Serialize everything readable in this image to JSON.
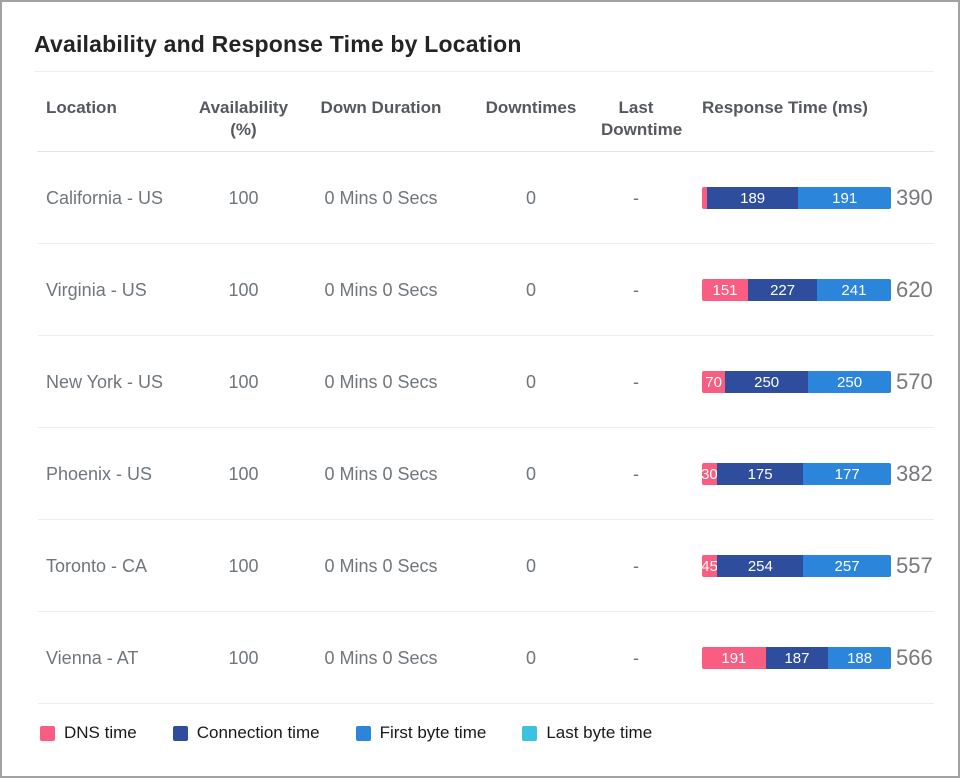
{
  "title": "Availability and Response Time by Location",
  "colors": {
    "dns": "#f95d81",
    "connection": "#2e4d9d",
    "first_byte": "#2b86db",
    "last_byte": "#3ac2e0"
  },
  "table": {
    "headers": {
      "location": "Location",
      "availability": "Availability\n(%)",
      "down_duration": "Down Duration",
      "downtimes": "Downtimes",
      "last_downtime": "Last\nDowntime",
      "response_time": "Response Time (ms)"
    },
    "rows": [
      {
        "location": "California - US",
        "availability": "100",
        "down_duration": "0 Mins 0 Secs",
        "downtimes": "0",
        "last_downtime": "-",
        "total": 390,
        "segments": [
          {
            "key": "dns",
            "value": 10,
            "label": ""
          },
          {
            "key": "connection",
            "value": 189,
            "label": "189"
          },
          {
            "key": "first_byte",
            "value": 191,
            "label": "191"
          }
        ]
      },
      {
        "location": "Virginia - US",
        "availability": "100",
        "down_duration": "0 Mins 0 Secs",
        "downtimes": "0",
        "last_downtime": "-",
        "total": 620,
        "segments": [
          {
            "key": "dns",
            "value": 151,
            "label": "151"
          },
          {
            "key": "connection",
            "value": 227,
            "label": "227"
          },
          {
            "key": "first_byte",
            "value": 241,
            "label": "241"
          }
        ]
      },
      {
        "location": "New York - US",
        "availability": "100",
        "down_duration": "0 Mins 0 Secs",
        "downtimes": "0",
        "last_downtime": "-",
        "total": 570,
        "segments": [
          {
            "key": "dns",
            "value": 70,
            "label": "70"
          },
          {
            "key": "connection",
            "value": 250,
            "label": "250"
          },
          {
            "key": "first_byte",
            "value": 250,
            "label": "250"
          }
        ]
      },
      {
        "location": "Phoenix - US",
        "availability": "100",
        "down_duration": "0 Mins 0 Secs",
        "downtimes": "0",
        "last_downtime": "-",
        "total": 382,
        "segments": [
          {
            "key": "dns",
            "value": 30,
            "label": "30"
          },
          {
            "key": "connection",
            "value": 175,
            "label": "175"
          },
          {
            "key": "first_byte",
            "value": 177,
            "label": "177"
          }
        ]
      },
      {
        "location": "Toronto - CA",
        "availability": "100",
        "down_duration": "0 Mins 0 Secs",
        "downtimes": "0",
        "last_downtime": "-",
        "total": 557,
        "segments": [
          {
            "key": "dns",
            "value": 45,
            "label": "45"
          },
          {
            "key": "connection",
            "value": 254,
            "label": "254"
          },
          {
            "key": "first_byte",
            "value": 257,
            "label": "257"
          }
        ]
      },
      {
        "location": "Vienna - AT",
        "availability": "100",
        "down_duration": "0 Mins 0 Secs",
        "downtimes": "0",
        "last_downtime": "-",
        "total": 566,
        "segments": [
          {
            "key": "dns",
            "value": 191,
            "label": "191"
          },
          {
            "key": "connection",
            "value": 187,
            "label": "187"
          },
          {
            "key": "first_byte",
            "value": 188,
            "label": "188"
          }
        ]
      }
    ]
  },
  "legend": [
    {
      "key": "dns",
      "label": "DNS time"
    },
    {
      "key": "connection",
      "label": "Connection time"
    },
    {
      "key": "first_byte",
      "label": "First byte time"
    },
    {
      "key": "last_byte",
      "label": "Last byte time"
    }
  ],
  "chart_data": {
    "type": "bar",
    "orientation": "horizontal",
    "stacked": true,
    "normalized_bar_width": true,
    "title": "Availability and Response Time by Location",
    "categories": [
      "California - US",
      "Virginia - US",
      "New York - US",
      "Phoenix - US",
      "Toronto - CA",
      "Vienna - AT"
    ],
    "series": [
      {
        "name": "DNS time",
        "values": [
          10,
          151,
          70,
          30,
          45,
          191
        ]
      },
      {
        "name": "Connection time",
        "values": [
          189,
          227,
          250,
          175,
          254,
          187
        ]
      },
      {
        "name": "First byte time",
        "values": [
          191,
          241,
          250,
          177,
          257,
          188
        ]
      },
      {
        "name": "Last byte time",
        "values": [
          0,
          0,
          0,
          0,
          0,
          0
        ]
      }
    ],
    "totals": [
      390,
      620,
      570,
      382,
      557,
      566
    ],
    "value_unit": "ms",
    "legend_position": "bottom",
    "table_columns": [
      "Location",
      "Availability (%)",
      "Down Duration",
      "Downtimes",
      "Last Downtime",
      "Response Time (ms)"
    ],
    "availability_pct": [
      100,
      100,
      100,
      100,
      100,
      100
    ],
    "down_duration": [
      "0 Mins 0 Secs",
      "0 Mins 0 Secs",
      "0 Mins 0 Secs",
      "0 Mins 0 Secs",
      "0 Mins 0 Secs",
      "0 Mins 0 Secs"
    ],
    "downtimes": [
      0,
      0,
      0,
      0,
      0,
      0
    ],
    "last_downtime": [
      "-",
      "-",
      "-",
      "-",
      "-",
      "-"
    ]
  }
}
